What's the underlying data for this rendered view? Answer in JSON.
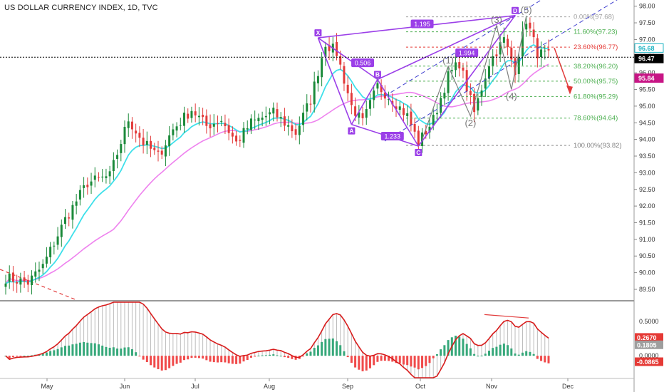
{
  "header": {
    "title": "US DOLLAR CURRENCY INDEX, 1D, TVC"
  },
  "colors": {
    "up": "#1b8a3a",
    "down": "#e23b3b",
    "ma_fast": "#3fe0ea",
    "ma_slow": "#ee82ee",
    "pattern": "#9b3fe8",
    "fib_green": "#4caf50",
    "fib_red": "#e53935",
    "macd_line": "#d81b1b",
    "hist_up": "#36a87a",
    "hist_down": "#f04a4a",
    "channel": "#3f3fcf",
    "wave": "#808080"
  },
  "chart_data": {
    "type": "candlestick",
    "title": "US DOLLAR CURRENCY INDEX, 1D, TVC",
    "x_ticks": [
      "May",
      "Jun",
      "Jul",
      "Aug",
      "Sep",
      "Oct",
      "Nov",
      "Dec"
    ],
    "y_ticks": [
      "98.00",
      "97.50",
      "97.00",
      "96.50",
      "96.00",
      "95.50",
      "95.00",
      "94.50",
      "94.00",
      "93.50",
      "93.00",
      "92.50",
      "92.00",
      "91.50",
      "91.00",
      "90.50",
      "90.00",
      "89.50"
    ],
    "ylim": [
      89.2,
      98.1
    ],
    "anchors": [
      [
        0,
        89.85
      ],
      [
        6,
        89.7
      ],
      [
        10,
        90.2
      ],
      [
        16,
        91.6
      ],
      [
        22,
        92.7
      ],
      [
        28,
        92.9
      ],
      [
        33,
        94.6
      ],
      [
        37,
        93.9
      ],
      [
        41,
        93.5
      ],
      [
        45,
        94.3
      ],
      [
        50,
        94.9
      ],
      [
        54,
        94.4
      ],
      [
        58,
        94.6
      ],
      [
        62,
        93.9
      ],
      [
        66,
        94.5
      ],
      [
        72,
        94.8
      ],
      [
        78,
        94.2
      ],
      [
        82,
        95.2
      ],
      [
        86,
        96.9
      ],
      [
        89,
        96.6
      ],
      [
        93,
        95.0
      ],
      [
        96,
        94.5
      ],
      [
        100,
        95.6
      ],
      [
        104,
        95.2
      ],
      [
        108,
        94.7
      ],
      [
        111,
        93.9
      ],
      [
        115,
        94.6
      ],
      [
        119,
        95.9
      ],
      [
        122,
        96.3
      ],
      [
        126,
        94.8
      ],
      [
        130,
        96.3
      ],
      [
        134,
        97.0
      ],
      [
        137,
        96.1
      ],
      [
        140,
        97.6
      ],
      [
        143,
        96.6
      ],
      [
        146,
        96.5
      ]
    ],
    "current_price": "96.47",
    "price_labels": [
      {
        "text": "96.68",
        "value": 96.68,
        "bg": "#ffffff",
        "fg": "#1ab3c2",
        "border": "#1ab3c2"
      },
      {
        "text": "96.47",
        "value": 96.47,
        "bg": "#000000",
        "fg": "#ffffff"
      },
      {
        "text": "95.84",
        "value": 95.84,
        "bg": "#c71585",
        "fg": "#ffffff"
      }
    ],
    "fib_levels": [
      {
        "pct": "0.00%",
        "price": 97.68,
        "label": "0.00%(97.68)",
        "color": "#9e9e9e"
      },
      {
        "pct": "11.60%",
        "price": 97.23,
        "label": "11.60%(97.23)",
        "color": "#4caf50"
      },
      {
        "pct": "23.60%",
        "price": 96.77,
        "label": "23.60%(96.77)",
        "color": "#e53935"
      },
      {
        "pct": "38.20%",
        "price": 96.2,
        "label": "38.20%(96.20)",
        "color": "#4caf50"
      },
      {
        "pct": "50.00%",
        "price": 95.75,
        "label": "50.00%(95.75)",
        "color": "#4caf50"
      },
      {
        "pct": "61.80%",
        "price": 95.29,
        "label": "61.80%(95.29)",
        "color": "#4caf50"
      },
      {
        "pct": "78.60%",
        "price": 94.64,
        "label": "78.60%(94.64)",
        "color": "#4caf50"
      },
      {
        "pct": "100.00%",
        "price": 93.82,
        "label": "100.00%(93.82)",
        "color": "#808080"
      }
    ],
    "harmonic": {
      "points": [
        {
          "name": "X",
          "bar": 84,
          "price": 97.05
        },
        {
          "name": "A",
          "bar": 93,
          "price": 94.45
        },
        {
          "name": "B",
          "bar": 100,
          "price": 95.8
        },
        {
          "name": "C",
          "bar": 111,
          "price": 93.8
        },
        {
          "name": "D",
          "bar": 137,
          "price": 97.72
        }
      ],
      "ratios": [
        {
          "text": "0.506",
          "bar": 96,
          "price": 96.3
        },
        {
          "text": "1.233",
          "bar": 104,
          "price": 94.1
        },
        {
          "text": "1.195",
          "bar": 112,
          "price": 97.47
        },
        {
          "text": "1.994",
          "bar": 124,
          "price": 96.6
        }
      ]
    },
    "waves": [
      {
        "label": "(1)",
        "bar": 119,
        "price": 96.2
      },
      {
        "label": "(2)",
        "bar": 125,
        "price": 94.7
      },
      {
        "label": "(3)",
        "bar": 132,
        "price": 97.42
      },
      {
        "label": "(4)",
        "bar": 136,
        "price": 95.5
      },
      {
        "label": "(5)",
        "bar": 140,
        "price": 97.7
      }
    ],
    "macd": {
      "y_ticks": [
        "0.5000",
        "0.0000"
      ],
      "labels": [
        {
          "text": "0.2670",
          "value": 0.267,
          "bg": "#e53935"
        },
        {
          "text": "0.1805",
          "value": 0.1805,
          "bg": "#9e9e9e"
        },
        {
          "text": "-0.0865",
          "value": -0.0865,
          "bg": "#e53935"
        }
      ],
      "ylim": [
        -0.32,
        0.78
      ]
    }
  }
}
